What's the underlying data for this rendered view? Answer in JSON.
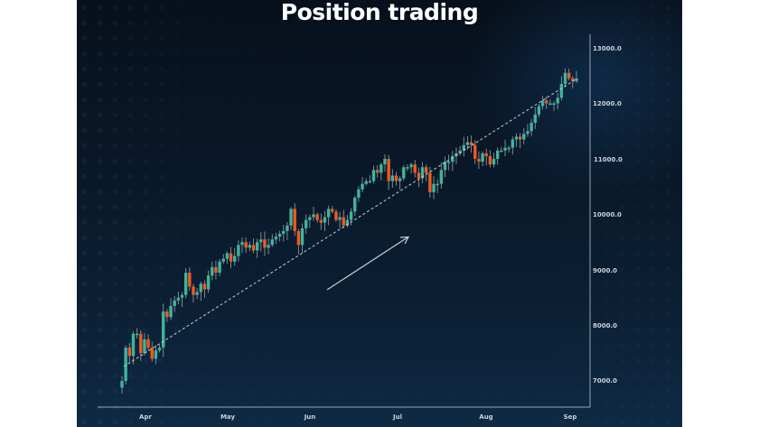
{
  "title": "Position trading",
  "colors": {
    "background_panel": "#0a1a2b",
    "up_candle": "#3fb49c",
    "down_candle": "#f05a1e",
    "wick": "#8a949e",
    "axis": "#9aa3ad",
    "trendline": "#c8ccd0",
    "arrow": "#c8ccd0",
    "label": "#c9d1da"
  },
  "chart_data": {
    "type": "candlestick",
    "title": "Position trading",
    "xlabel": "",
    "ylabel": "",
    "ylim": [
      6700,
      13100
    ],
    "y_ticks": [
      7000,
      8000,
      9000,
      10000,
      11000,
      12000,
      13000
    ],
    "y_tick_labels": [
      "7000.0",
      "8000.0",
      "9000.0",
      "10000.0",
      "11000.0",
      "12000.0",
      "13000.0"
    ],
    "x_tick_labels": [
      "Apr",
      "May",
      "Jun",
      "Jul",
      "Aug",
      "Sep"
    ],
    "grid": false,
    "legend": null,
    "annotations": [
      {
        "type": "dashed_trendline",
        "from": {
          "index": 0,
          "price": 7300
        },
        "to": {
          "index": 121,
          "price": 12450
        }
      },
      {
        "type": "arrow",
        "direction": "up-right",
        "meaning": "uptrend"
      }
    ],
    "closes": [
      7000,
      7600,
      7450,
      7850,
      7850,
      7500,
      7750,
      7600,
      7400,
      7550,
      7600,
      8250,
      8150,
      8350,
      8450,
      8500,
      8550,
      8950,
      8700,
      8550,
      8600,
      8750,
      8650,
      8900,
      9050,
      8950,
      9150,
      9200,
      9300,
      9150,
      9250,
      9450,
      9500,
      9400,
      9450,
      9350,
      9500,
      9550,
      9400,
      9450,
      9550,
      9600,
      9650,
      9700,
      9800,
      10100,
      9700,
      9450,
      9750,
      9900,
      9950,
      10000,
      9900,
      9850,
      9950,
      10100,
      10050,
      9900,
      9950,
      9800,
      9900,
      10050,
      10300,
      10450,
      10550,
      10600,
      10600,
      10800,
      10750,
      10900,
      11000,
      10600,
      10700,
      10600,
      10650,
      10850,
      10850,
      10900,
      10750,
      10650,
      10850,
      10750,
      10400,
      10550,
      10550,
      10800,
      10950,
      10950,
      11050,
      11100,
      11150,
      11250,
      11300,
      11250,
      11000,
      10950,
      11100,
      11050,
      10900,
      11000,
      11150,
      11150,
      11200,
      11200,
      11350,
      11400,
      11350,
      11450,
      11500,
      11650,
      11800,
      11950,
      12050,
      12000,
      12000,
      12000,
      12100,
      12350,
      12550,
      12450,
      12400,
      12450
    ]
  },
  "axes": {
    "y_labels": [
      "13000.0",
      "12000.0",
      "11000.0",
      "10000.0",
      "9000.0",
      "8000.0",
      "7000.0"
    ],
    "x_labels": [
      "Apr",
      "May",
      "Jun",
      "Jul",
      "Aug",
      "Sep"
    ]
  }
}
